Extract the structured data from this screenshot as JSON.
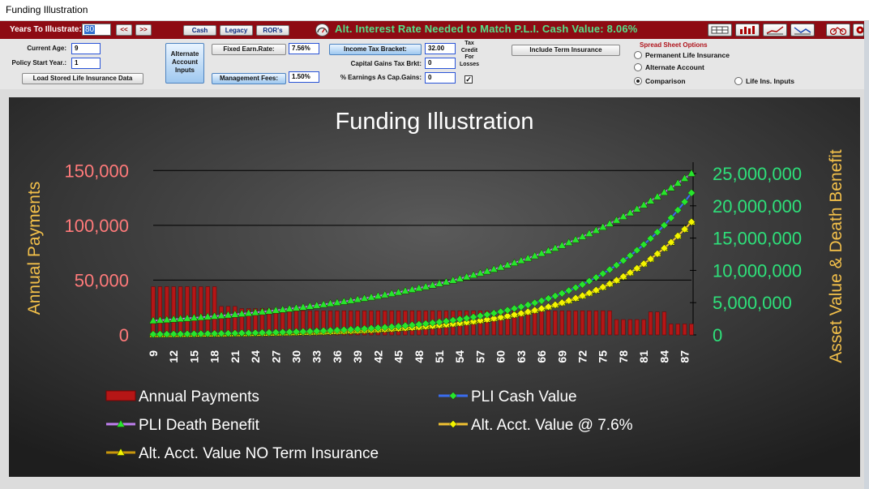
{
  "window": {
    "title": "Funding Illustration"
  },
  "toolbar": {
    "years_label": "Years To Illustrate:",
    "years_value": "80",
    "back_label": "<<",
    "fwd_label": ">>",
    "cash_label": "Cash",
    "legacy_label": "Legacy",
    "rors_label": "ROR's",
    "headline": "Alt. Interest Rate Needed to Match P.L.I. Cash Value: 8.06%"
  },
  "inputs": {
    "current_age_label": "Current Age:",
    "current_age_value": "9",
    "policy_start_label": "Policy Start Year.:",
    "policy_start_value": "1",
    "load_button": "Load Stored Life Insurance Data",
    "alt_account_button": [
      "Alternate",
      "Account",
      "Inputs"
    ],
    "fixed_earn_label": "Fixed Earn.Rate:",
    "fixed_earn_value": "7.56%",
    "mgmt_fees_label": "Management Fees:",
    "mgmt_fees_value": "1.50%",
    "income_tax_label": "Income Tax Bracket:",
    "income_tax_value": "32.00",
    "cap_gains_label": "Capital Gains Tax Brkt:",
    "cap_gains_value": "0",
    "pct_earnings_label": "% Earnings As Cap.Gains:",
    "pct_earnings_value": "0",
    "tax_credit_lines": [
      "Tax",
      "Credit",
      "For",
      "Losses"
    ],
    "tax_credit_checked": "✓",
    "include_term_button": "Include Term Insurance"
  },
  "spreadsheet": {
    "title": "Spread Sheet Options",
    "options": [
      "Permanent Life Insurance",
      "Alternate Account",
      "Comparison",
      "Life Ins. Inputs"
    ],
    "selected": "Comparison"
  },
  "chart_data": {
    "type": "bar+line",
    "title": "Funding Illustration",
    "ylabel_left": "Annual Payments",
    "ylabel_right": "Asset Value & Death Benefit",
    "left_ticks": [
      "0",
      "50,000",
      "100,000",
      "150,000"
    ],
    "left_ylim": [
      0,
      165000
    ],
    "right_ticks": [
      "0",
      "5,000,000",
      "10,000,000",
      "15,000,000",
      "20,000,000",
      "25,000,000"
    ],
    "right_ylim": [
      0,
      25000000
    ],
    "x_ticks": [
      "9",
      "12",
      "15",
      "18",
      "21",
      "24",
      "27",
      "30",
      "33",
      "36",
      "39",
      "42",
      "45",
      "48",
      "51",
      "54",
      "57",
      "60",
      "63",
      "66",
      "69",
      "72",
      "75",
      "78",
      "81",
      "84",
      "87"
    ],
    "x_start": 9,
    "x_end": 88,
    "bar_segments": [
      {
        "from": 9,
        "to": 18,
        "value": 44000
      },
      {
        "from": 19,
        "to": 21,
        "value": 26000
      },
      {
        "from": 22,
        "to": 26,
        "value": 24000
      },
      {
        "from": 27,
        "to": 76,
        "value": 22000
      },
      {
        "from": 77,
        "to": 81,
        "value": 14000
      },
      {
        "from": 82,
        "to": 84,
        "value": 21000
      },
      {
        "from": 85,
        "to": 88,
        "value": 10000
      }
    ],
    "series": [
      {
        "name": "Annual Payments",
        "kind": "bar",
        "color": "#c21a1a"
      },
      {
        "name": "PLI Cash Value",
        "kind": "line",
        "color": "#3a6df0",
        "marker": "diamond",
        "marker_color": "#27e52d",
        "start": 100000,
        "end": 22000000,
        "growth": 0.0645
      },
      {
        "name": "PLI Death Benefit",
        "kind": "line",
        "color": "#c07ff0",
        "marker": "triangle",
        "marker_color": "#27e52d",
        "start": 2200000,
        "end": 25000000,
        "growth": 0.0312
      },
      {
        "name": "Alt. Acct. Value @ 7.6%",
        "kind": "line",
        "color": "#f1c232",
        "marker": "diamond",
        "marker_color": "#f4f400",
        "start": 90000,
        "end": 17500000,
        "growth": 0.066
      },
      {
        "name": "Alt. Acct. Value  NO Term Insurance",
        "kind": "line",
        "color": "#c8960c",
        "marker": "triangle",
        "marker_color": "#f4f400",
        "start": 90000,
        "end": 17500000,
        "growth": 0.066
      }
    ],
    "legend_position": "bottom",
    "grid": "horizontal"
  },
  "colors": {
    "toolbar_red": "#8e0b13",
    "left_axis": "#ff7a7a",
    "right_axis": "#2ee07a",
    "axis_title": "#f3c04a"
  }
}
